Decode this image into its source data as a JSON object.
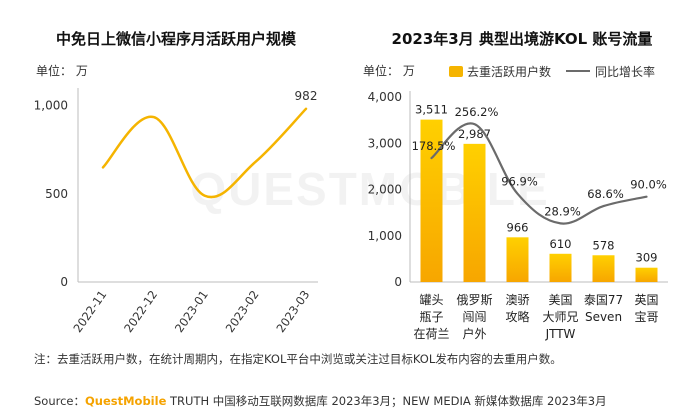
{
  "colors": {
    "accent": "#f5b400",
    "bar_top": "#ffd000",
    "bar_bottom": "#f7a600",
    "growth_line": "#6b6b6b",
    "axis": "#bdbdbd",
    "text": "#222222"
  },
  "chart_data": [
    {
      "type": "line",
      "title": "中免日上微信小程序月活跃用户规模",
      "unit_label": "单位： 万",
      "x": [
        "2022-11",
        "2022-12",
        "2023-01",
        "2023-02",
        "2023-03"
      ],
      "series": [
        {
          "values": [
            650,
            935,
            490,
            680,
            982
          ]
        }
      ],
      "yticks": [
        0,
        500,
        1000
      ],
      "ytick_labels": [
        "0",
        "500",
        "1,000"
      ],
      "ylim": [
        0,
        1100
      ],
      "data_labels": [
        {
          "index": 4,
          "text": "982"
        }
      ],
      "grid": false
    },
    {
      "type": "bar",
      "title": "2023年3月 典型出境游KOL 账号流量",
      "unit_label": "单位： 万",
      "categories": [
        [
          "罐头",
          "瓶子",
          "在荷兰"
        ],
        [
          "俄罗斯",
          "闯闯",
          "户外"
        ],
        [
          "澳骄",
          "攻略"
        ],
        [
          "美国",
          "大师兄",
          "JTTW"
        ],
        [
          "泰国77",
          "Seven"
        ],
        [
          "英国",
          "宝哥"
        ]
      ],
      "series": [
        {
          "name": "去重活跃用户数",
          "kind": "bar",
          "values": [
            3511,
            2987,
            966,
            610,
            578,
            309
          ],
          "labels": [
            "3,511",
            "2,987",
            "966",
            "610",
            "578",
            "309"
          ]
        },
        {
          "name": "同比增长率",
          "kind": "line",
          "values": [
            178.5,
            256.2,
            96.9,
            28.9,
            68.6,
            90.0
          ],
          "labels": [
            "178.5%",
            "256.2%",
            "96.9%",
            "28.9%",
            "68.6%",
            "90.0%"
          ]
        }
      ],
      "yticks": [
        0,
        1000,
        2000,
        3000,
        4000
      ],
      "ytick_labels": [
        "0",
        "1,000",
        "2,000",
        "3,000",
        "4,000"
      ],
      "ylim": [
        0,
        4000
      ],
      "legend_position": "top",
      "grid": false
    }
  ],
  "note": "注：去重活跃用户数，在统计周期内，在指定KOL平台中浏览或关注过目标KOL发布内容的去重用户数。",
  "source": {
    "prefix": "Source：",
    "brand": "QuestMobile",
    "rest": " TRUTH 中国移动互联网数据库 2023年3月；NEW MEDIA 新媒体数据库 2023年3月"
  },
  "watermark": "QUESTMOBILE"
}
